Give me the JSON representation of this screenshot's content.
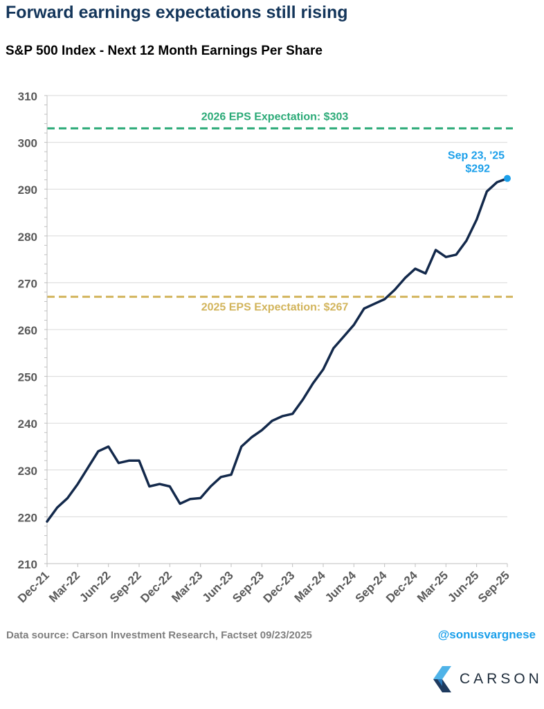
{
  "chart_data": {
    "type": "line",
    "title": "Forward earnings expectations still rising",
    "subtitle": "S&P 500 Index - Next 12 Month Earnings Per Share",
    "xlabel": "",
    "ylabel": "",
    "ylim": [
      210,
      310
    ],
    "yticks": [
      210,
      220,
      230,
      240,
      250,
      260,
      270,
      280,
      290,
      300,
      310
    ],
    "xlim": [
      "2021-12",
      "2025-09"
    ],
    "xtick_labels": [
      "Dec-21",
      "Mar-22",
      "Jun-22",
      "Sep-22",
      "Dec-22",
      "Mar-23",
      "Jun-23",
      "Sep-23",
      "Dec-23",
      "Mar-24",
      "Jun-24",
      "Sep-24",
      "Dec-24",
      "Mar-25",
      "Jun-25",
      "Sep-25"
    ],
    "grid": "horizontal",
    "series": [
      {
        "name": "",
        "color": "#13294b",
        "x": [
          "2021-12",
          "2022-01",
          "2022-02",
          "2022-03",
          "2022-04",
          "2022-05",
          "2022-06",
          "2022-07",
          "2022-08",
          "2022-09",
          "2022-10",
          "2022-11",
          "2022-12",
          "2023-01",
          "2023-02",
          "2023-03",
          "2023-04",
          "2023-05",
          "2023-06",
          "2023-07",
          "2023-08",
          "2023-09",
          "2023-10",
          "2023-11",
          "2023-12",
          "2024-01",
          "2024-02",
          "2024-03",
          "2024-04",
          "2024-05",
          "2024-06",
          "2024-07",
          "2024-08",
          "2024-09",
          "2024-10",
          "2024-11",
          "2024-12",
          "2025-01",
          "2025-02",
          "2025-03",
          "2025-04",
          "2025-05",
          "2025-06",
          "2025-07",
          "2025-08",
          "2025-09"
        ],
        "values": [
          219,
          222,
          224,
          227,
          230.5,
          234,
          235,
          231.5,
          232,
          232,
          226.5,
          227,
          226.5,
          222.8,
          223.8,
          224,
          226.5,
          228.5,
          229,
          235,
          237,
          238.5,
          240.5,
          241.5,
          242,
          245,
          248.5,
          251.5,
          256,
          258.5,
          261,
          264.5,
          265.5,
          266.5,
          268.5,
          271,
          273,
          272,
          277,
          275.5,
          276,
          279,
          283.5,
          289.5,
          291.5,
          292.3
        ]
      }
    ],
    "reference_lines": [
      {
        "label": "2026 EPS Expectation: $303",
        "value": 303,
        "color": "#2baa77"
      },
      {
        "label": "2025 EPS Expectation: $267",
        "value": 267,
        "color": "#d2b45b"
      }
    ],
    "annotations": [
      {
        "date_label": "Sep 23, '25",
        "value_label": "$292",
        "x": "2025-09",
        "value": 292.3,
        "color": "#1a9fea"
      }
    ]
  },
  "footer": {
    "source": "Data source: Carson Investment Research, Factset   09/23/2025",
    "handle": "@sonusvargnese",
    "brand": "CARSON"
  },
  "icons": {
    "logo": "carson-logo-icon"
  }
}
